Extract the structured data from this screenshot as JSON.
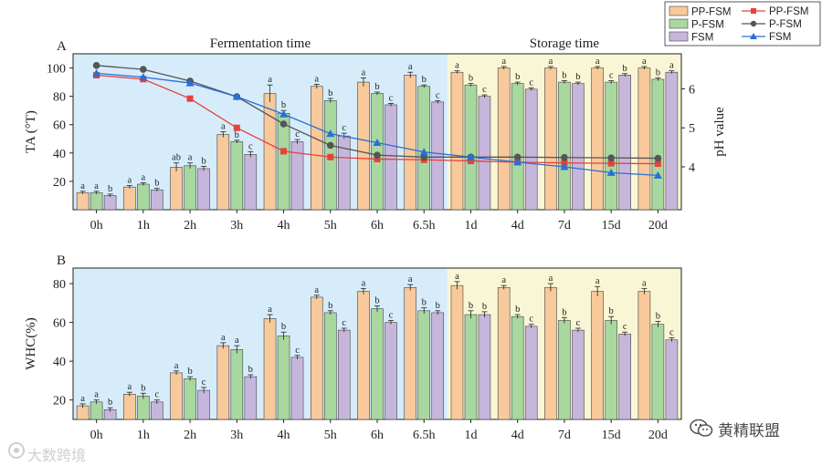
{
  "chart_data": [
    {
      "panel_label": "A",
      "type": "bar+line",
      "categories": [
        "0h",
        "1h",
        "2h",
        "3h",
        "4h",
        "5h",
        "6h",
        "6.5h",
        "1d",
        "4d",
        "7d",
        "15d",
        "20d"
      ],
      "regions": [
        {
          "label": "Fermentation time",
          "from": "0h",
          "to": "6.5h",
          "color": "#d6ecfb"
        },
        {
          "label": "Storage time",
          "from": "1d",
          "to": "20d",
          "color": "#f8f6d5"
        }
      ],
      "ylabel": "TA (°T)",
      "ylim": [
        0,
        110
      ],
      "yticks": [
        20,
        40,
        60,
        80,
        100
      ],
      "y2label": "pH value",
      "y2lim": [
        2.9,
        6.9
      ],
      "y2ticks": [
        4,
        5,
        6
      ],
      "bar_series": [
        {
          "name": "PP-FSM",
          "color": "#f8c99b",
          "values": [
            12,
            16,
            30,
            53,
            82,
            87,
            90,
            95,
            97,
            100,
            100,
            100,
            100
          ],
          "errors": [
            1,
            1,
            3,
            2,
            6,
            1.5,
            3,
            2,
            1,
            1,
            1,
            1,
            1
          ],
          "letters": [
            "a",
            "a",
            "ab",
            "a",
            "a",
            "a",
            "a",
            "a",
            "a",
            "a",
            "a",
            "a",
            "a"
          ]
        },
        {
          "name": "P-FSM",
          "color": "#a8d8a0",
          "values": [
            12,
            18,
            31,
            48,
            68,
            77,
            82,
            87,
            88,
            89,
            90,
            90,
            92
          ],
          "errors": [
            1,
            1,
            2,
            1,
            2,
            1.5,
            1,
            1,
            1,
            1,
            1,
            1,
            1
          ],
          "letters": [
            "a",
            "a",
            "a",
            "b",
            "b",
            "b",
            "b",
            "b",
            "b",
            "b",
            "b",
            "c",
            "b"
          ]
        },
        {
          "name": "FSM",
          "color": "#c7b6dc",
          "values": [
            10,
            14,
            29,
            39,
            48,
            52,
            74,
            76,
            80,
            85,
            89,
            95,
            97
          ],
          "errors": [
            1,
            1,
            1.5,
            2,
            1.5,
            2,
            1,
            1,
            1,
            1,
            1,
            1,
            1
          ],
          "letters": [
            "b",
            "b",
            "b",
            "c",
            "c",
            "c",
            "c",
            "c",
            "c",
            "c",
            "b",
            "b",
            "a"
          ]
        }
      ],
      "line_series": [
        {
          "name": "PP-FSM",
          "color": "#e8403a",
          "marker": "square",
          "values": [
            6.35,
            6.25,
            5.75,
            5.0,
            4.4,
            4.25,
            4.2,
            4.18,
            4.15,
            4.12,
            4.1,
            4.09,
            4.08
          ]
        },
        {
          "name": "P-FSM",
          "color": "#555555",
          "marker": "circle",
          "values": [
            6.6,
            6.5,
            6.2,
            5.8,
            5.1,
            4.55,
            4.3,
            4.25,
            4.25,
            4.25,
            4.24,
            4.23,
            4.22
          ]
        },
        {
          "name": "FSM",
          "color": "#2a6fd6",
          "marker": "triangle",
          "values": [
            6.4,
            6.3,
            6.15,
            5.8,
            5.35,
            4.85,
            4.62,
            4.38,
            4.25,
            4.12,
            4.0,
            3.85,
            3.78
          ]
        }
      ]
    },
    {
      "panel_label": "B",
      "type": "bar",
      "categories": [
        "0h",
        "1h",
        "2h",
        "3h",
        "4h",
        "5h",
        "6h",
        "6.5h",
        "1d",
        "4d",
        "7d",
        "15d",
        "20d"
      ],
      "ylabel": "WHC(%)",
      "ylim": [
        10,
        88
      ],
      "yticks": [
        20,
        40,
        60,
        80
      ],
      "series": [
        {
          "name": "PP-FSM",
          "color": "#f8c99b",
          "values": [
            17,
            23,
            34,
            48,
            62,
            73,
            76,
            78,
            79,
            78,
            78,
            76,
            76
          ],
          "errors": [
            1,
            1,
            1,
            1.5,
            2,
            1,
            1.5,
            1.5,
            2,
            1,
            2,
            2.5,
            1.5
          ],
          "letters": [
            "a",
            "a",
            "a",
            "a",
            "a",
            "a",
            "a",
            "a",
            "a",
            "a",
            "a",
            "a",
            "a"
          ]
        },
        {
          "name": "P-FSM",
          "color": "#a8d8a0",
          "values": [
            19,
            22,
            31,
            46,
            53,
            65,
            67,
            66,
            64,
            63,
            61,
            61,
            59
          ],
          "errors": [
            1,
            1.5,
            1,
            2,
            2,
            1,
            1.5,
            1.5,
            2,
            1,
            1.5,
            2,
            1.5
          ],
          "letters": [
            "a",
            "b",
            "b",
            "a",
            "b",
            "b",
            "b",
            "b",
            "b",
            "b",
            "b",
            "b",
            "b"
          ]
        },
        {
          "name": "FSM",
          "color": "#c7b6dc",
          "values": [
            15,
            19,
            25,
            32,
            42,
            56,
            60,
            65,
            64,
            58,
            56,
            54,
            51
          ],
          "errors": [
            1,
            1,
            1.5,
            1,
            1,
            1,
            1,
            1,
            1.5,
            1,
            1,
            1,
            1
          ],
          "letters": [
            "b",
            "c",
            "c",
            "b",
            "c",
            "c",
            "c",
            "b",
            "b",
            "c",
            "c",
            "c",
            "c"
          ]
        }
      ]
    }
  ],
  "watermarks": {
    "left": "大数跨境",
    "right": "黄精联盟"
  }
}
